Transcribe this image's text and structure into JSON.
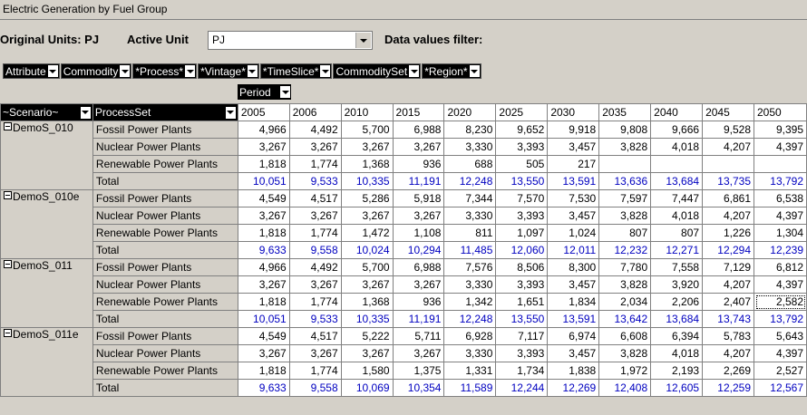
{
  "window": {
    "title": "Electric Generation by Fuel Group"
  },
  "toolbar": {
    "original_units_label": "Original Units: PJ",
    "active_unit_label": "Active Unit",
    "active_unit_value": "PJ",
    "filter_label": "Data values filter:"
  },
  "fields": [
    "Attribute",
    "Commodity",
    "*Process*",
    "*Vintage*",
    "*TimeSlice*",
    "CommoditySet",
    "*Region*"
  ],
  "column_field": "Period",
  "row_fields": [
    "~Scenario~",
    "ProcessSet"
  ],
  "years": [
    "2005",
    "2006",
    "2010",
    "2015",
    "2020",
    "2025",
    "2030",
    "2035",
    "2040",
    "2045",
    "2050"
  ],
  "scenarios": [
    {
      "name": "DemoS_010",
      "rows": [
        {
          "label": "Fossil Power Plants",
          "values": [
            "4,966",
            "4,492",
            "5,700",
            "6,988",
            "8,230",
            "9,652",
            "9,918",
            "9,808",
            "9,666",
            "9,528",
            "9,395"
          ]
        },
        {
          "label": "Nuclear Power Plants",
          "values": [
            "3,267",
            "3,267",
            "3,267",
            "3,267",
            "3,330",
            "3,393",
            "3,457",
            "3,828",
            "4,018",
            "4,207",
            "4,397"
          ]
        },
        {
          "label": "Renewable  Power Plants",
          "values": [
            "1,818",
            "1,774",
            "1,368",
            "936",
            "688",
            "505",
            "217",
            "",
            "",
            "",
            ""
          ]
        },
        {
          "label": "Total",
          "total": true,
          "values": [
            "10,051",
            "9,533",
            "10,335",
            "11,191",
            "12,248",
            "13,550",
            "13,591",
            "13,636",
            "13,684",
            "13,735",
            "13,792"
          ]
        }
      ]
    },
    {
      "name": "DemoS_010e",
      "rows": [
        {
          "label": "Fossil Power Plants",
          "values": [
            "4,549",
            "4,517",
            "5,286",
            "5,918",
            "7,344",
            "7,570",
            "7,530",
            "7,597",
            "7,447",
            "6,861",
            "6,538"
          ]
        },
        {
          "label": "Nuclear Power Plants",
          "values": [
            "3,267",
            "3,267",
            "3,267",
            "3,267",
            "3,330",
            "3,393",
            "3,457",
            "3,828",
            "4,018",
            "4,207",
            "4,397"
          ]
        },
        {
          "label": "Renewable  Power Plants",
          "values": [
            "1,818",
            "1,774",
            "1,472",
            "1,108",
            "811",
            "1,097",
            "1,024",
            "807",
            "807",
            "1,226",
            "1,304"
          ]
        },
        {
          "label": "Total",
          "total": true,
          "values": [
            "9,633",
            "9,558",
            "10,024",
            "10,294",
            "11,485",
            "12,060",
            "12,011",
            "12,232",
            "12,271",
            "12,294",
            "12,239"
          ]
        }
      ]
    },
    {
      "name": "DemoS_011",
      "rows": [
        {
          "label": "Fossil Power Plants",
          "values": [
            "4,966",
            "4,492",
            "5,700",
            "6,988",
            "7,576",
            "8,506",
            "8,300",
            "7,780",
            "7,558",
            "7,129",
            "6,812"
          ]
        },
        {
          "label": "Nuclear Power Plants",
          "values": [
            "3,267",
            "3,267",
            "3,267",
            "3,267",
            "3,330",
            "3,393",
            "3,457",
            "3,828",
            "3,920",
            "4,207",
            "4,397"
          ]
        },
        {
          "label": "Renewable  Power Plants",
          "values": [
            "1,818",
            "1,774",
            "1,368",
            "936",
            "1,342",
            "1,651",
            "1,834",
            "2,034",
            "2,206",
            "2,407",
            "2,582"
          ]
        },
        {
          "label": "Total",
          "total": true,
          "values": [
            "10,051",
            "9,533",
            "10,335",
            "11,191",
            "12,248",
            "13,550",
            "13,591",
            "13,642",
            "13,684",
            "13,743",
            "13,792"
          ]
        }
      ]
    },
    {
      "name": "DemoS_011e",
      "rows": [
        {
          "label": "Fossil Power Plants",
          "values": [
            "4,549",
            "4,517",
            "5,222",
            "5,711",
            "6,928",
            "7,117",
            "6,974",
            "6,608",
            "6,394",
            "5,783",
            "5,643"
          ]
        },
        {
          "label": "Nuclear Power Plants",
          "values": [
            "3,267",
            "3,267",
            "3,267",
            "3,267",
            "3,330",
            "3,393",
            "3,457",
            "3,828",
            "4,018",
            "4,207",
            "4,397"
          ]
        },
        {
          "label": "Renewable  Power Plants",
          "values": [
            "1,818",
            "1,774",
            "1,580",
            "1,375",
            "1,331",
            "1,734",
            "1,838",
            "1,972",
            "2,193",
            "2,269",
            "2,527"
          ]
        },
        {
          "label": "Total",
          "total": true,
          "values": [
            "9,633",
            "9,558",
            "10,069",
            "10,354",
            "11,589",
            "12,244",
            "12,269",
            "12,408",
            "12,605",
            "12,259",
            "12,567"
          ]
        }
      ]
    }
  ],
  "colors": {
    "total_text": "#0000c0",
    "header_bg": "#000000",
    "panel_bg": "#d4d0c8"
  }
}
